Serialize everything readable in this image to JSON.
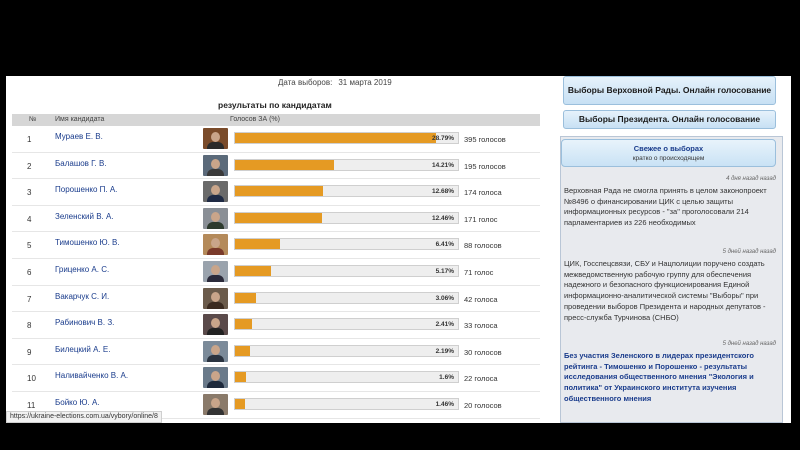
{
  "header": {
    "date_label": "Дата выборов:",
    "date_value": "31 марта 2019"
  },
  "results_title": "результаты по кандидатам",
  "table": {
    "col_num": "№",
    "col_name": "Имя кандидата",
    "col_votes": "Голосов ЗА (%)",
    "rows": [
      {
        "num": "1",
        "name": "Мураев Е. В.",
        "pct": "28.79%",
        "share": 0.2879,
        "votes": "395 голосов"
      },
      {
        "num": "2",
        "name": "Балашов Г. В.",
        "pct": "14.21%",
        "share": 0.1421,
        "votes": "195 голосов"
      },
      {
        "num": "3",
        "name": "Порошенко П. А.",
        "pct": "12.68%",
        "share": 0.1268,
        "votes": "174 голоса"
      },
      {
        "num": "4",
        "name": "Зеленский В. А.",
        "pct": "12.46%",
        "share": 0.1246,
        "votes": "171 голос"
      },
      {
        "num": "5",
        "name": "Тимошенко Ю. В.",
        "pct": "6.41%",
        "share": 0.0641,
        "votes": "88 голосов"
      },
      {
        "num": "6",
        "name": "Гриценко А. С.",
        "pct": "5.17%",
        "share": 0.0517,
        "votes": "71 голос"
      },
      {
        "num": "7",
        "name": "Вакарчук С. И.",
        "pct": "3.06%",
        "share": 0.0306,
        "votes": "42 голоса"
      },
      {
        "num": "8",
        "name": "Рабинович В. З.",
        "pct": "2.41%",
        "share": 0.0241,
        "votes": "33 голоса"
      },
      {
        "num": "9",
        "name": "Билецкий А. Е.",
        "pct": "2.19%",
        "share": 0.0219,
        "votes": "30 голосов"
      },
      {
        "num": "10",
        "name": "Наливайченко В. А.",
        "pct": "1.6%",
        "share": 0.016,
        "votes": "22 голоса"
      },
      {
        "num": "11",
        "name": "Бойко Ю. А.",
        "pct": "1.46%",
        "share": 0.0146,
        "votes": "20 голосов"
      }
    ]
  },
  "status_url": "https://ukraine-elections.com.ua/vybory/online/8",
  "sidebar": {
    "btn_rada": "Выборы Верховной Рады. Онлайн голосование",
    "btn_president": "Выборы Президента. Онлайн голосование",
    "news_title": "Свежее о выборах",
    "news_subtitle": "кратко о происходящем",
    "news": [
      {
        "ago": "4 дня назад назад",
        "text": "Верховная Рада не смогла принять в целом законопроект №8496 о финансировании ЦИК с целью защиты информационных ресурсов - \"за\" проголосовали 214 парламентариев из 226 необходимых"
      },
      {
        "ago": "5 дней назад назад",
        "text": "ЦИК, Госспецсвязи, СБУ и Нацполиции поручено создать межведомственную рабочую группу для обеспечения надежного и безопасного функционирования Единой информационно-аналитической системы \"Выборы\" при проведении выборов Президента и народных депутатов - пресс-служба Турчинова (СНБО)"
      },
      {
        "ago": "5 дней назад назад",
        "text": "Без участия Зеленского в лидерах президентского рейтинга - Тимошенко и Порошенко - результаты исследования общественного мнения \"Экология и политика\" от Украинского института изучения общественного мнения"
      }
    ]
  },
  "colors": {
    "bar_fill": "#e59a23",
    "bar_track": "#eeeeee",
    "link": "#1a3c8c",
    "button_bg": "#c7e0f4"
  }
}
